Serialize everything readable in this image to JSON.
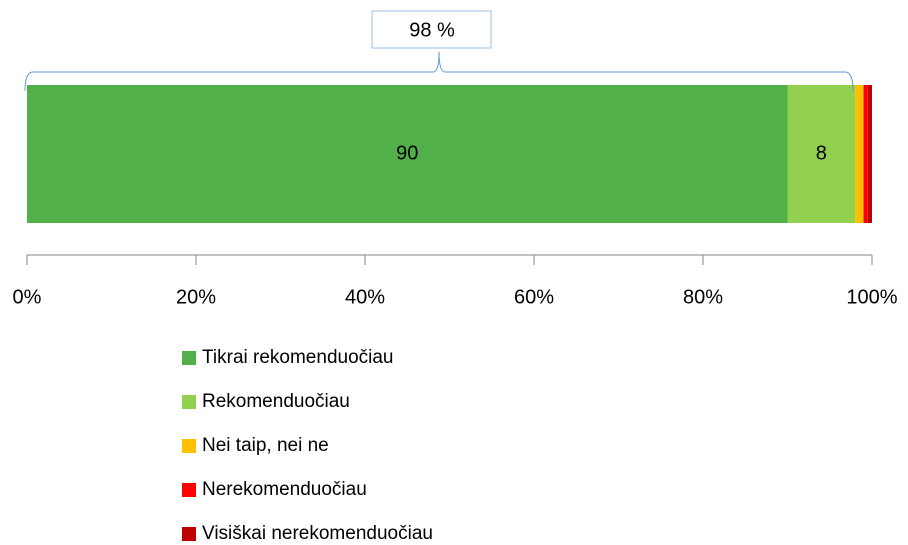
{
  "chart_data": {
    "type": "stacked_barh",
    "categories": [
      null
    ],
    "series": [
      {
        "name": "Tikrai rekomenduočiau",
        "color": "#52b04b",
        "values": [
          90
        ]
      },
      {
        "name": "Rekomenduočiau",
        "color": "#92d050",
        "values": [
          8
        ]
      },
      {
        "name": "Nei taip, nei ne",
        "color": "#ffc000",
        "values": [
          1
        ]
      },
      {
        "name": "Nerekomenduočiau",
        "color": "#ff0000",
        "values": [
          0.5
        ]
      },
      {
        "name": "Visiškai nerekomenduočiau",
        "color": "#c00000",
        "values": [
          0.5
        ]
      }
    ],
    "data_labels": [
      true,
      true,
      false,
      false,
      false
    ],
    "annotation": {
      "label": "98 %",
      "value": 98
    },
    "xlim": [
      0,
      100
    ],
    "xticks": [
      {
        "value": 0,
        "label": "0%"
      },
      {
        "value": 20,
        "label": "20%"
      },
      {
        "value": 40,
        "label": "40%"
      },
      {
        "value": 60,
        "label": "60%"
      },
      {
        "value": 80,
        "label": "80%"
      },
      {
        "value": 100,
        "label": "100%"
      }
    ],
    "legend": "bottom"
  }
}
